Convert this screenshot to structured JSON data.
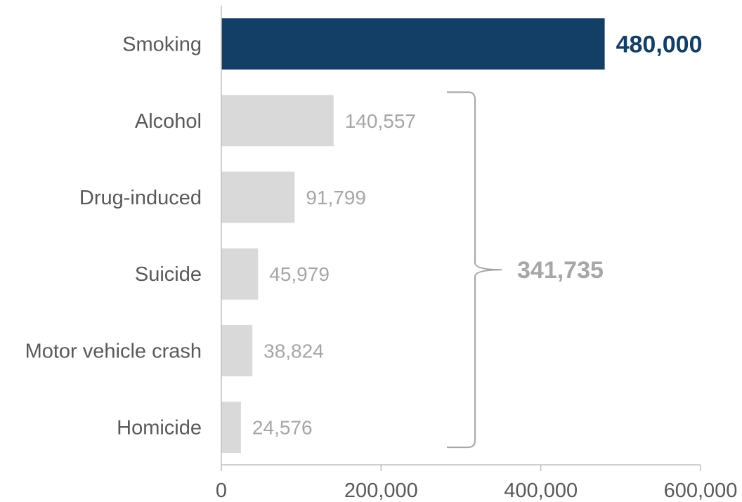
{
  "chart_data": {
    "type": "bar",
    "orientation": "horizontal",
    "categories": [
      "Smoking",
      "Alcohol",
      "Drug-induced",
      "Suicide",
      "Motor vehicle crash",
      "Homicide"
    ],
    "values": [
      480000,
      140557,
      91799,
      45979,
      38824,
      24576
    ],
    "value_labels": [
      "480,000",
      "140,557",
      "91,799",
      "45,979",
      "38,824",
      "24,576"
    ],
    "highlight_index": 0,
    "colors": {
      "highlight": "#133f66",
      "default": "#d9d9d9",
      "highlight_label": "#133f66",
      "default_label": "#a6a6a6",
      "axis": "#bfbfbf",
      "bracket": "#a6a6a6"
    },
    "xlim": [
      0,
      600000
    ],
    "x_ticks": [
      0,
      200000,
      400000,
      600000
    ],
    "x_tick_labels": [
      "0",
      "200,000",
      "400,000",
      "600,000"
    ],
    "bracket": {
      "from_index": 1,
      "to_index": 5,
      "label": "341,735"
    },
    "grid": false,
    "legend": "none"
  }
}
